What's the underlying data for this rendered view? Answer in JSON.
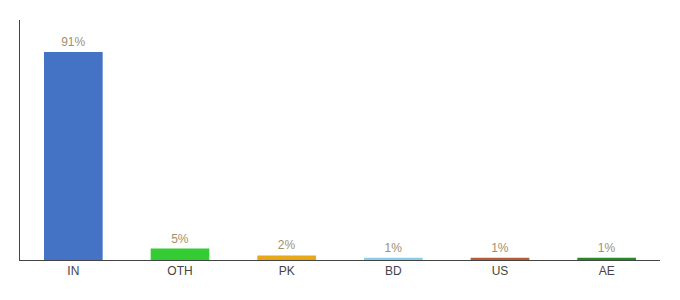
{
  "chart_data": {
    "type": "bar",
    "categories": [
      "IN",
      "OTH",
      "PK",
      "BD",
      "US",
      "AE"
    ],
    "values": [
      91,
      5,
      2,
      1,
      1,
      1
    ],
    "value_labels": [
      "91%",
      "5%",
      "2%",
      "1%",
      "1%",
      "1%"
    ],
    "data_labels": true,
    "colors": [
      "#4472c4",
      "#33cc33",
      "#e6a817",
      "#87ceeb",
      "#b85c38",
      "#228b22"
    ],
    "ylim": [
      0,
      105
    ],
    "tick_labels": "x",
    "grid": false
  }
}
